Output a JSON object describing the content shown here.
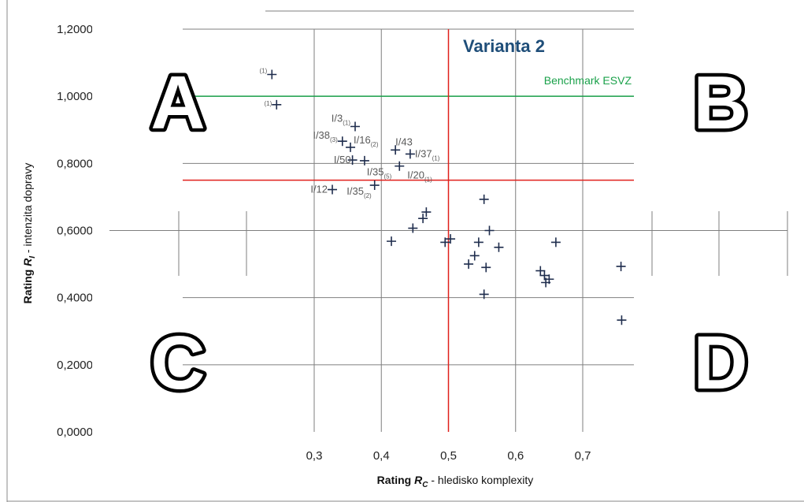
{
  "chart_data": {
    "type": "scatter",
    "title": "Varianta 2",
    "xlabel_main": "Rating ",
    "xlabel_var": "R",
    "xlabel_sub": "C",
    "xlabel_rest": " - hledisko komplexity",
    "ylabel_main": "Rating ",
    "ylabel_var": "R",
    "ylabel_sub": "I",
    "ylabel_rest": " - intenzita dopravy",
    "xlim": [
      0.23,
      0.76
    ],
    "ylim": [
      0,
      1.2
    ],
    "x_ticks": [
      "0,3",
      "0,4",
      "0,5",
      "0,6",
      "0,7"
    ],
    "y_ticks": [
      "0,0000",
      "0,2000",
      "0,4000",
      "0,6000",
      "0,8000",
      "1,0000",
      "1,2000"
    ],
    "grid": true,
    "benchmark": {
      "label": "Benchmark ESVZ",
      "y": 1.0,
      "color": "#1aa14a"
    },
    "threshold_x": 0.5,
    "threshold_y": 0.75,
    "threshold_color": "#e0201b",
    "marker_color": "#1f2d4d",
    "quadrant_labels": [
      "A",
      "B",
      "C",
      "D"
    ],
    "points": [
      {
        "x": 0.237,
        "y": 1.065,
        "label": "",
        "sub": "(1)"
      },
      {
        "x": 0.244,
        "y": 0.975,
        "label": "",
        "sub": "(1)"
      },
      {
        "x": 0.361,
        "y": 0.91,
        "label": "I/3",
        "sub": "(1)"
      },
      {
        "x": 0.342,
        "y": 0.866,
        "label": "I/38",
        "sub": "(3)"
      },
      {
        "x": 0.354,
        "y": 0.848,
        "label": "I/16",
        "sub": "(2)"
      },
      {
        "x": 0.421,
        "y": 0.84,
        "label": "I/43",
        "sub": ""
      },
      {
        "x": 0.443,
        "y": 0.828,
        "label": "I/37",
        "sub": "(1)"
      },
      {
        "x": 0.357,
        "y": 0.81,
        "label": "I/50",
        "sub": ""
      },
      {
        "x": 0.375,
        "y": 0.808,
        "label": "",
        "sub": ""
      },
      {
        "x": 0.427,
        "y": 0.792,
        "label": "I/35",
        "sub": "(5)"
      },
      {
        "x": 0.427,
        "y": 0.792,
        "label": "I/20",
        "sub": "(1)"
      },
      {
        "x": 0.327,
        "y": 0.722,
        "label": "I/12",
        "sub": ""
      },
      {
        "x": 0.39,
        "y": 0.735,
        "label": "I/35",
        "sub": "(2)"
      },
      {
        "x": 0.553,
        "y": 0.693,
        "label": "",
        "sub": ""
      },
      {
        "x": 0.467,
        "y": 0.655,
        "label": "",
        "sub": ""
      },
      {
        "x": 0.462,
        "y": 0.636,
        "label": "",
        "sub": ""
      },
      {
        "x": 0.447,
        "y": 0.607,
        "label": "",
        "sub": ""
      },
      {
        "x": 0.561,
        "y": 0.6,
        "label": "",
        "sub": ""
      },
      {
        "x": 0.503,
        "y": 0.575,
        "label": "",
        "sub": ""
      },
      {
        "x": 0.415,
        "y": 0.568,
        "label": "",
        "sub": ""
      },
      {
        "x": 0.495,
        "y": 0.565,
        "label": "",
        "sub": ""
      },
      {
        "x": 0.545,
        "y": 0.565,
        "label": "",
        "sub": ""
      },
      {
        "x": 0.66,
        "y": 0.565,
        "label": "",
        "sub": ""
      },
      {
        "x": 0.575,
        "y": 0.55,
        "label": "",
        "sub": ""
      },
      {
        "x": 0.539,
        "y": 0.525,
        "label": "",
        "sub": ""
      },
      {
        "x": 0.53,
        "y": 0.5,
        "label": "",
        "sub": ""
      },
      {
        "x": 0.556,
        "y": 0.49,
        "label": "",
        "sub": ""
      },
      {
        "x": 0.757,
        "y": 0.493,
        "label": "",
        "sub": ""
      },
      {
        "x": 0.637,
        "y": 0.48,
        "label": "",
        "sub": ""
      },
      {
        "x": 0.643,
        "y": 0.466,
        "label": "",
        "sub": ""
      },
      {
        "x": 0.65,
        "y": 0.455,
        "label": "",
        "sub": ""
      },
      {
        "x": 0.645,
        "y": 0.445,
        "label": "",
        "sub": ""
      },
      {
        "x": 0.553,
        "y": 0.41,
        "label": "",
        "sub": ""
      },
      {
        "x": 0.758,
        "y": 0.333,
        "label": "",
        "sub": ""
      }
    ]
  }
}
